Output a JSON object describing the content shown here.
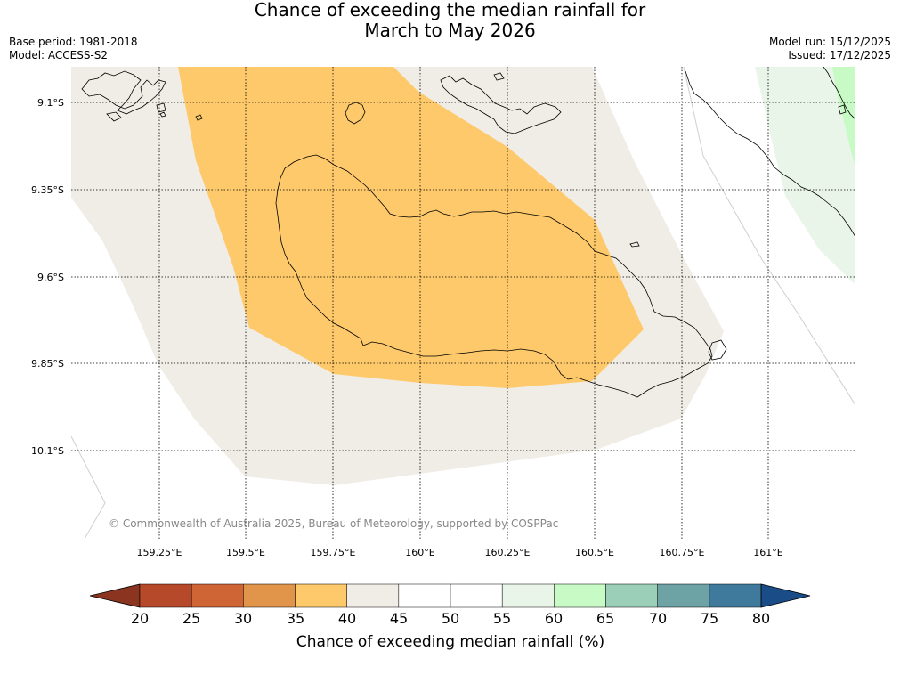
{
  "title": {
    "line1": "Chance of exceeding the median rainfall for",
    "line2": "March to May 2026"
  },
  "meta": {
    "base_period": "Base period: 1981-2018",
    "model": "Model: ACCESS-S2",
    "model_run": "Model run: 15/12/2025",
    "issued": "Issued: 17/12/2025"
  },
  "map": {
    "lat_labels": [
      "9.1°S",
      "9.35°S",
      "9.6°S",
      "9.85°S",
      "10.1°S"
    ],
    "lon_labels": [
      "159.25°E",
      "159.5°E",
      "159.75°E",
      "160°E",
      "160.25°E",
      "160.5°E",
      "160.75°E",
      "161°E"
    ],
    "copyright": "© Commonwealth of Australia 2025, Bureau of Meteorology, supported by COSPPac"
  },
  "colorbar": {
    "ticks": [
      "20",
      "25",
      "30",
      "35",
      "40",
      "45",
      "50",
      "55",
      "60",
      "65",
      "70",
      "75",
      "80"
    ],
    "label": "Chance of exceeding median rainfall (%)",
    "colors": [
      "#8b3420",
      "#b5492a",
      "#cf6435",
      "#e0954a",
      "#fec96a",
      "#f0ece6",
      "#ffffff",
      "#ffffff",
      "#eaf5e9",
      "#c8fac6",
      "#9bcfb8",
      "#6ea3a5",
      "#3f7a9c",
      "#1a4d88"
    ]
  }
}
